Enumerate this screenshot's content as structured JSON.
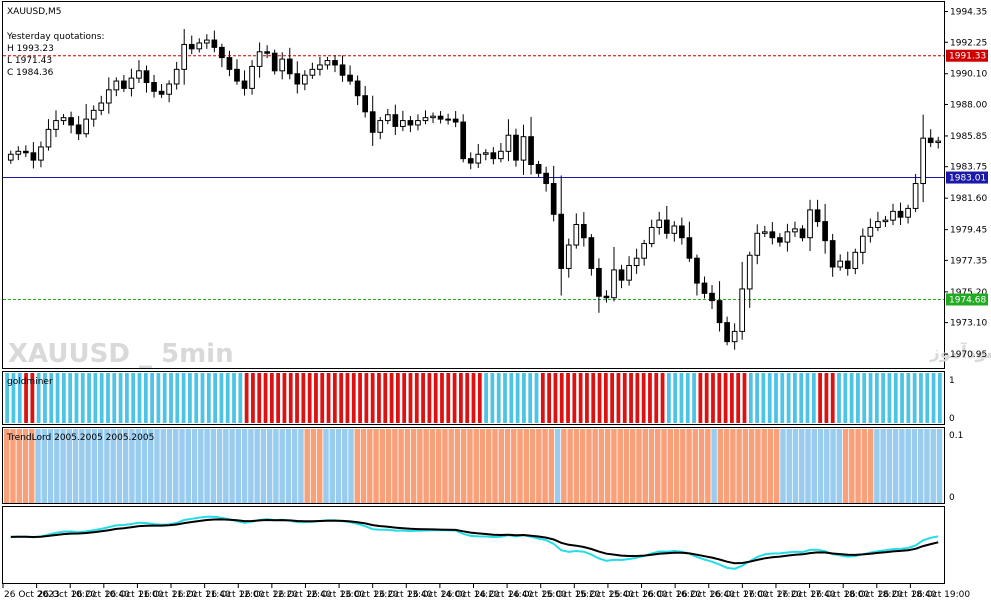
{
  "window": {
    "title": "XAUUSD,M5"
  },
  "quotes": {
    "heading": "Yesterday quotations:",
    "high": "H 1993.23",
    "low": "L 1971.43",
    "close": "C 1984.36"
  },
  "watermarks": {
    "english": "XAUUSD _ 5min",
    "persian": "انتشار در سایت سودآموز"
  },
  "levels": [
    {
      "name": "yesterday-high",
      "value": 1991.33,
      "label": "1991.33",
      "color": "#cc0000",
      "style": "dashed"
    },
    {
      "name": "current-price",
      "value": 1983.01,
      "label": "1983.01",
      "color": "#1a1aa8",
      "style": "solid"
    },
    {
      "name": "yesterday-low",
      "value": 1974.68,
      "label": "1974.68",
      "color": "#22aa22",
      "style": "dashed"
    }
  ],
  "colors": {
    "bull": "#ffffff",
    "bear": "#000000",
    "goldminer_up": "#4dc3e6",
    "goldminer_down": "#dd1111",
    "trend_up": "#99ccef",
    "trend_down": "#f7a07a",
    "line_fast": "#22dde6",
    "line_slow": "#000000"
  },
  "chart_data": {
    "type": "candlestick",
    "symbol": "XAUUSD",
    "timeframe": "M5",
    "ylim": [
      1970.0,
      1995.0
    ],
    "yticks": [
      "1994.35",
      "1992.25",
      "1990.10",
      "1988.00",
      "1985.85",
      "1983.75",
      "1981.60",
      "1979.45",
      "1977.35",
      "1975.20",
      "1973.10",
      "1970.95"
    ],
    "xticks": [
      "26 Oct 2023",
      "26 Oct 10:20",
      "26 Oct 10:40",
      "26 Oct 11:00",
      "26 Oct 11:20",
      "26 Oct 11:40",
      "26 Oct 12:00",
      "26 Oct 12:20",
      "26 Oct 12:40",
      "26 Oct 13:00",
      "26 Oct 13:20",
      "26 Oct 13:40",
      "26 Oct 14:00",
      "26 Oct 14:20",
      "26 Oct 14:40",
      "26 Oct 15:00",
      "26 Oct 15:20",
      "26 Oct 15:40",
      "26 Oct 16:00",
      "26 Oct 16:20",
      "26 Oct 16:40",
      "26 Oct 17:00",
      "26 Oct 17:20",
      "26 Oct 17:40",
      "26 Oct 18:00",
      "26 Oct 18:20",
      "26 Oct 18:40",
      "26 Oct 19:00"
    ],
    "close": [
      1984.6,
      1984.8,
      1984.7,
      1984.2,
      1985.1,
      1986.3,
      1986.9,
      1987.1,
      1986.6,
      1986.0,
      1987.0,
      1987.6,
      1988.1,
      1989.0,
      1989.6,
      1989.1,
      1989.8,
      1990.3,
      1989.5,
      1988.9,
      1988.7,
      1989.4,
      1990.4,
      1992.1,
      1991.8,
      1992.2,
      1992.4,
      1991.9,
      1991.2,
      1990.4,
      1989.6,
      1989.1,
      1990.6,
      1991.6,
      1991.5,
      1990.3,
      1991.1,
      1990.1,
      1989.4,
      1990.0,
      1990.4,
      1990.7,
      1991.0,
      1990.7,
      1990.0,
      1989.6,
      1988.6,
      1987.5,
      1986.1,
      1986.9,
      1987.3,
      1986.5,
      1986.9,
      1986.6,
      1986.9,
      1987.1,
      1987.2,
      1987.0,
      1987.0,
      1986.8,
      1984.3,
      1984.0,
      1984.6,
      1984.7,
      1984.3,
      1984.8,
      1985.9,
      1984.2,
      1985.8,
      1983.9,
      1983.3,
      1982.6,
      1980.5,
      1976.8,
      1978.4,
      1979.8,
      1978.9,
      1976.8,
      1974.9,
      1974.8,
      1976.7,
      1976.0,
      1977.0,
      1977.5,
      1978.5,
      1979.6,
      1980.1,
      1979.2,
      1979.7,
      1978.9,
      1977.5,
      1975.8,
      1975.1,
      1974.6,
      1973.1,
      1971.8,
      1972.5,
      1975.4,
      1977.7,
      1979.2,
      1979.3,
      1978.9,
      1978.6,
      1979.3,
      1979.5,
      1978.9,
      1980.8,
      1980.0,
      1978.7,
      1976.9,
      1977.3,
      1976.8,
      1977.9,
      1979.0,
      1979.6,
      1980.0,
      1980.1,
      1980.7,
      1980.3,
      1980.9,
      1982.6,
      1985.7,
      1985.4,
      1985.5
    ],
    "series": [
      {
        "name": "goldminer",
        "yrange": [
          "0",
          "1"
        ],
        "states": "UUUDDUUUUUUUUUUUUUUUUUUUUUUUUUUUUUUUUUDDDDDDDDDDDDDDDDDDDDDDDDDDDDDDDDDDDDDDUUUUUUUUUDDDDDDDDDDDDDDDDDDDDUUUUUDDDDDDDDUUUUUUUUUUUDDDUUUUUUUUUUUUUUUUU"
      },
      {
        "name": "TrendLord 2005.2005 2005.2005",
        "yrange": [
          "0",
          "0.1"
        ],
        "segments": [
          [
            "down",
            0,
            5
          ],
          [
            "up",
            5,
            48
          ],
          [
            "down",
            48,
            51
          ],
          [
            "up",
            51,
            56
          ],
          [
            "down",
            56,
            88
          ],
          [
            "up",
            88,
            89
          ],
          [
            "down",
            89,
            113
          ],
          [
            "up",
            113,
            114
          ],
          [
            "down",
            114,
            124
          ],
          [
            "up",
            124,
            134
          ],
          [
            "down",
            134,
            139
          ],
          [
            "up",
            139,
            150
          ]
        ]
      }
    ]
  }
}
